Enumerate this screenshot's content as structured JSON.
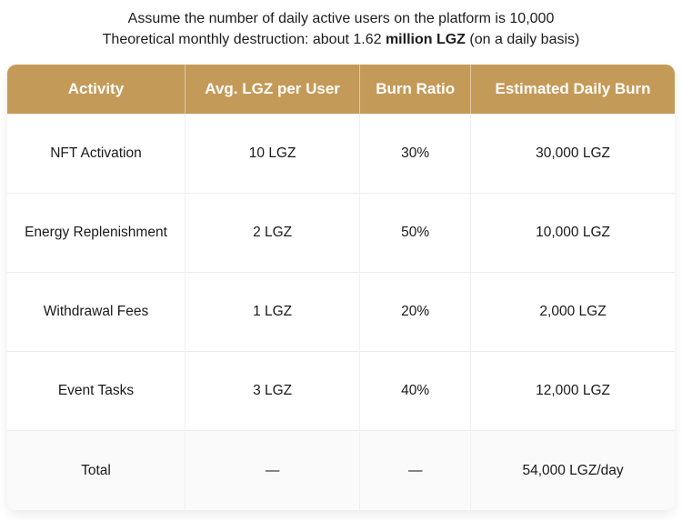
{
  "intro": {
    "line1": "Assume the number of daily active users on the platform is 10,000",
    "line2_prefix": "Theoretical monthly destruction: about 1.62 ",
    "line2_bold": "million LGZ",
    "line2_suffix": " (on a daily basis)"
  },
  "colors": {
    "header_bg": "#C49A58",
    "header_text": "#FFFFFF",
    "row_border": "#ECECEC",
    "total_row_bg": "#FAFAFA",
    "body_text": "#1A1A1A"
  },
  "table": {
    "headers": [
      "Activity",
      "Avg. LGZ per User",
      "Burn Ratio",
      "Estimated Daily Burn"
    ],
    "rows": [
      {
        "activity": "NFT Activation",
        "avg_lgz_per_user": "10 LGZ",
        "burn_ratio": "30%",
        "estimated_daily_burn": "30,000 LGZ"
      },
      {
        "activity": "Energy Replenishment",
        "avg_lgz_per_user": "2 LGZ",
        "burn_ratio": "50%",
        "estimated_daily_burn": "10,000 LGZ"
      },
      {
        "activity": "Withdrawal Fees",
        "avg_lgz_per_user": "1 LGZ",
        "burn_ratio": "20%",
        "estimated_daily_burn": "2,000 LGZ"
      },
      {
        "activity": "Event Tasks",
        "avg_lgz_per_user": "3 LGZ",
        "burn_ratio": "40%",
        "estimated_daily_burn": "12,000 LGZ"
      },
      {
        "activity": "Total",
        "avg_lgz_per_user": "—",
        "burn_ratio": "—",
        "estimated_daily_burn": "54,000 LGZ/day"
      }
    ]
  }
}
